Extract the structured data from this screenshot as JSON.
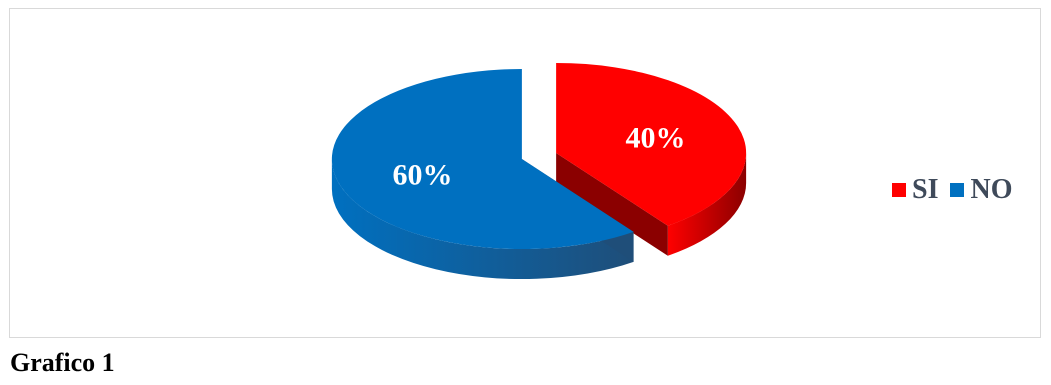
{
  "chart_data": {
    "type": "pie",
    "style": "3d-exploded",
    "slices": [
      {
        "label": "SI",
        "value": 40,
        "display": "40%",
        "color": "#ff0000",
        "side_color": "#8b0000"
      },
      {
        "label": "NO",
        "value": 60,
        "display": "60%",
        "color": "#0070c0",
        "side_color": "#1f4e79"
      }
    ],
    "legend_position": "right"
  },
  "caption": "Grafico 1"
}
